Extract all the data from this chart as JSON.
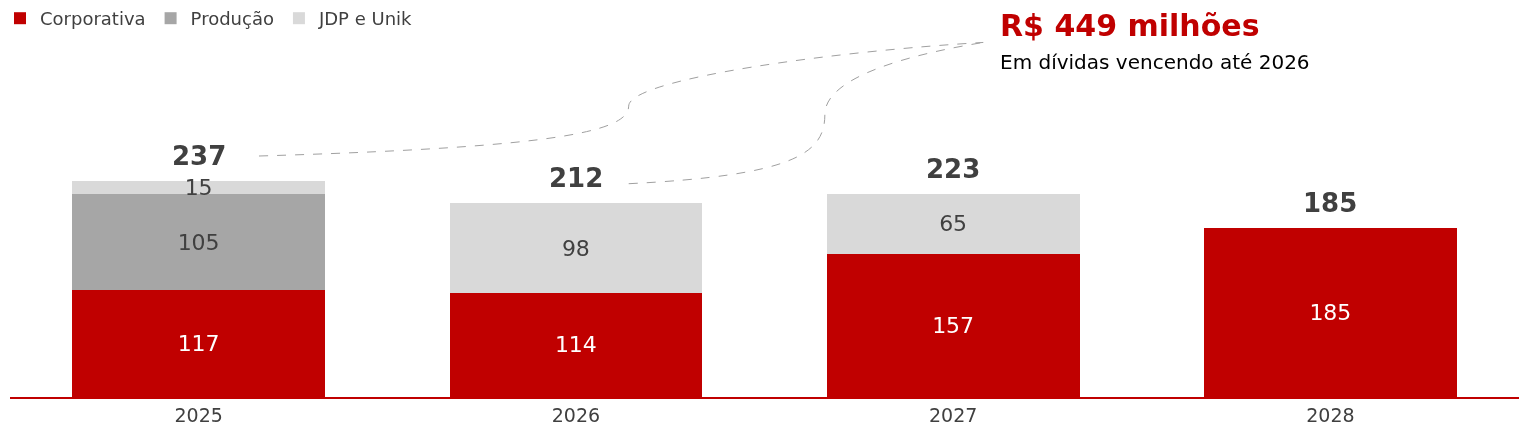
{
  "chart_data": {
    "type": "bar",
    "stacked": true,
    "data_labels": true,
    "legend": "top left",
    "categories": [
      "2025",
      "2026",
      "2027",
      "2028"
    ],
    "series": [
      {
        "name": "Corporativa",
        "color": "#c00000",
        "values": [
          117,
          114,
          157,
          185
        ]
      },
      {
        "name": "Produção",
        "color": "#a6a6a6",
        "values": [
          105,
          null,
          null,
          null
        ]
      },
      {
        "name": "JDP e Unik",
        "color": "#d9d9d9",
        "values": [
          15,
          98,
          65,
          null
        ]
      }
    ],
    "totals": [
      "237",
      "212",
      "223",
      "185"
    ],
    "title": "R$ 449 milhões",
    "subtitle": "Em dívidas vencendo até 2026"
  }
}
